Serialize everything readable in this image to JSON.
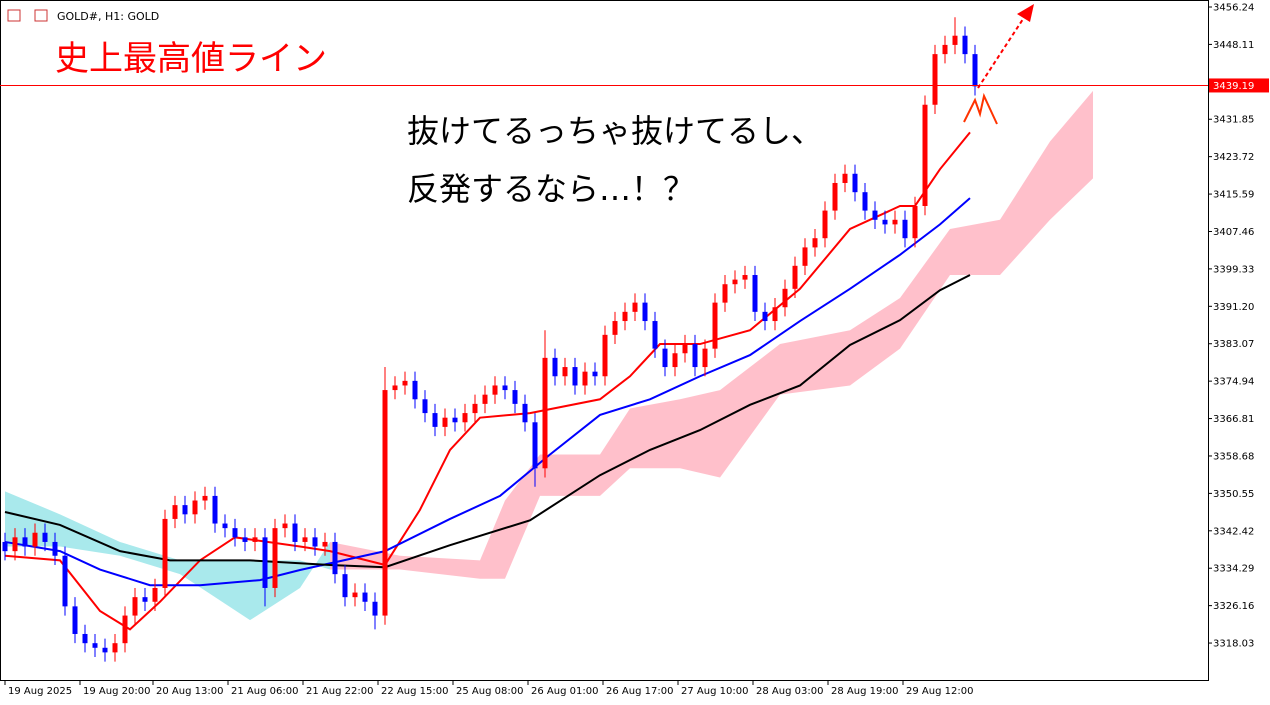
{
  "chart_data": {
    "type": "candlestick",
    "symbol_header": "GOLD#, H1: GOLD",
    "annotations": [
      "史上最高値ライン",
      "抜けてるっちゃ抜けてるし、",
      "反発するなら…！？"
    ],
    "price_line": 3439.19,
    "price_line_color": "#ff0000",
    "up_color": "#ff0000",
    "down_color": "#0000ff",
    "open": [
      3340,
      3338,
      3341,
      3339,
      3342,
      3340,
      3337,
      3326,
      3320,
      3318,
      3317,
      3316,
      3318,
      3324,
      3328,
      3327,
      3330,
      3345,
      3348,
      3346,
      3349,
      3350,
      3344,
      3343,
      3341,
      3340,
      3341,
      3330,
      3343,
      3344,
      3340,
      3341,
      3339,
      3340,
      3333,
      3328,
      3329,
      3327,
      3324,
      3373,
      3374,
      3375,
      3371,
      3368,
      3365,
      3367,
      3366,
      3368,
      3370,
      3372,
      3374,
      3373,
      3370,
      3366,
      3356,
      3380,
      3376,
      3378,
      3374,
      3377,
      3376,
      3385,
      3388,
      3390,
      3392,
      3388,
      3382,
      3378,
      3381,
      3383,
      3378,
      3382,
      3392,
      3396,
      3397,
      3398,
      3390,
      3388,
      3391,
      3395,
      3400,
      3404,
      3406,
      3412,
      3418,
      3420,
      3416,
      3412,
      3410,
      3409,
      3410,
      3406,
      3413,
      3435,
      3446,
      3448,
      3450,
      3446
    ],
    "high": [
      3342,
      3343,
      3343,
      3344,
      3344,
      3342,
      3339,
      3328,
      3322,
      3320,
      3319,
      3320,
      3326,
      3330,
      3330,
      3332,
      3347,
      3350,
      3350,
      3351,
      3352,
      3352,
      3346,
      3345,
      3343,
      3343,
      3343,
      3345,
      3346,
      3346,
      3343,
      3343,
      3342,
      3342,
      3335,
      3331,
      3331,
      3329,
      3378,
      3376,
      3377,
      3377,
      3373,
      3370,
      3369,
      3369,
      3370,
      3372,
      3374,
      3376,
      3376,
      3375,
      3372,
      3368,
      3386,
      3382,
      3380,
      3380,
      3379,
      3379,
      3387,
      3390,
      3392,
      3394,
      3394,
      3390,
      3384,
      3383,
      3385,
      3385,
      3384,
      3394,
      3398,
      3399,
      3400,
      3400,
      3392,
      3393,
      3397,
      3402,
      3406,
      3408,
      3414,
      3420,
      3422,
      3422,
      3418,
      3414,
      3412,
      3412,
      3412,
      3415,
      3437,
      3448,
      3450,
      3454,
      3452,
      3448
    ],
    "low": [
      3336,
      3336,
      3337,
      3337,
      3338,
      3335,
      3324,
      3318,
      3316,
      3315,
      3314,
      3314,
      3316,
      3322,
      3325,
      3325,
      3328,
      3343,
      3344,
      3344,
      3347,
      3342,
      3341,
      3339,
      3338,
      3338,
      3326,
      3328,
      3341,
      3338,
      3338,
      3337,
      3337,
      3331,
      3326,
      3326,
      3325,
      3321,
      3322,
      3371,
      3372,
      3369,
      3366,
      3363,
      3363,
      3364,
      3364,
      3366,
      3368,
      3370,
      3371,
      3368,
      3364,
      3352,
      3354,
      3374,
      3374,
      3372,
      3372,
      3374,
      3374,
      3383,
      3386,
      3388,
      3386,
      3380,
      3376,
      3376,
      3379,
      3376,
      3376,
      3380,
      3390,
      3394,
      3395,
      3388,
      3386,
      3386,
      3389,
      3393,
      3398,
      3402,
      3404,
      3410,
      3416,
      3414,
      3410,
      3408,
      3407,
      3407,
      3404,
      3404,
      3411,
      3433,
      3444,
      3446,
      3444,
      3437
    ],
    "close": [
      3338,
      3341,
      3339,
      3342,
      3340,
      3337,
      3326,
      3320,
      3318,
      3317,
      3316,
      3318,
      3324,
      3328,
      3327,
      3330,
      3345,
      3348,
      3346,
      3349,
      3350,
      3344,
      3343,
      3341,
      3340,
      3341,
      3330,
      3343,
      3344,
      3340,
      3341,
      3339,
      3340,
      3333,
      3328,
      3329,
      3327,
      3324,
      3373,
      3374,
      3375,
      3371,
      3368,
      3365,
      3367,
      3366,
      3368,
      3370,
      3372,
      3374,
      3373,
      3370,
      3366,
      3356,
      3380,
      3376,
      3378,
      3374,
      3377,
      3376,
      3385,
      3388,
      3390,
      3392,
      3388,
      3382,
      3378,
      3381,
      3383,
      3378,
      3382,
      3392,
      3396,
      3397,
      3398,
      3390,
      3388,
      3391,
      3395,
      3400,
      3404,
      3406,
      3412,
      3418,
      3420,
      3416,
      3412,
      3410,
      3409,
      3410,
      3406,
      3413,
      3435,
      3446,
      3448,
      3450,
      3446,
      3439
    ],
    "xlim": [
      -0.5,
      120.3
    ],
    "xticks": [
      {
        "value": 0,
        "label": "19 Aug 2025"
      },
      {
        "value": 7.5,
        "label": "19 Aug 20:00"
      },
      {
        "value": 14.8,
        "label": "20 Aug 13:00"
      },
      {
        "value": 22.3,
        "label": "21 Aug 06:00"
      },
      {
        "value": 29.8,
        "label": "21 Aug 22:00"
      },
      {
        "value": 37.3,
        "label": "22 Aug 15:00"
      },
      {
        "value": 44.8,
        "label": "25 Aug 08:00"
      },
      {
        "value": 52.3,
        "label": "26 Aug 01:00"
      },
      {
        "value": 59.8,
        "label": "26 Aug 17:00"
      },
      {
        "value": 67.3,
        "label": "27 Aug 10:00"
      },
      {
        "value": 74.8,
        "label": "28 Aug 03:00"
      },
      {
        "value": 82.3,
        "label": "28 Aug 19:00"
      },
      {
        "value": 89.8,
        "label": "29 Aug 12:00"
      }
    ],
    "ylim": [
      3310,
      3457.76
    ],
    "yticks": [
      3456.24,
      3448.11,
      3431.85,
      3423.72,
      3415.59,
      3407.46,
      3399.33,
      {
        "value": 3391.2,
        "label": "3391.20"
      },
      3383.07,
      3374.94,
      3366.81,
      3358.68,
      3350.55,
      3342.42,
      3334.29,
      3326.16,
      3318.03
    ],
    "lines": [
      {
        "color": "#ff0000",
        "x": [
          0,
          5.5,
          9.5,
          12.5,
          15.5,
          19.5,
          23,
          29.5,
          32.5,
          38,
          41.5,
          44.5,
          47.5,
          52.5,
          59.5,
          62.5,
          65.5,
          69.5,
          74.5,
          79.5,
          84.5,
          89.5,
          91,
          93.5,
          96.5
        ],
        "values": [
          3337,
          3336,
          3325,
          3321,
          3327,
          3336,
          3341,
          3339,
          3338,
          3335,
          3347,
          3360,
          3367,
          3368,
          3371,
          3376,
          3383,
          3383,
          3386,
          3395,
          3408,
          3413,
          3413,
          3421,
          3429
        ]
      },
      {
        "color": "#0000ff",
        "x": [
          0,
          5.5,
          9.5,
          14.5,
          19.5,
          25.5,
          29.5,
          38,
          44.5,
          49.5,
          54.5,
          59.5,
          64.5,
          69.5,
          74.5,
          79.5,
          84.5,
          89.5,
          93.5,
          96.5
        ],
        "values": [
          3340,
          3338,
          3334,
          3330.6,
          3330.6,
          3331.7,
          3333.9,
          3338,
          3345,
          3350,
          3359,
          3367.6,
          3371,
          3376,
          3380.6,
          3388,
          3395,
          3402.4,
          3409,
          3414.7
        ]
      },
      {
        "color": "#000000",
        "x": [
          0,
          5.5,
          11.5,
          16.5,
          24.5,
          32.5,
          38,
          44.5,
          52.5,
          59.5,
          64.5,
          69.5,
          74.5,
          79.5,
          84.5,
          89.5,
          93.5,
          96.5
        ],
        "values": [
          3346.5,
          3343.7,
          3338,
          3336,
          3336,
          3335,
          3334.5,
          3339.3,
          3344.7,
          3354.5,
          3360,
          3364.3,
          3369.8,
          3374,
          3382.8,
          3388.2,
          3394.7,
          3398
        ]
      }
    ],
    "cloud": {
      "up_color": "#a9e9ec",
      "down_color": "#ffc0cb",
      "x": [
        0,
        5.5,
        11.5,
        17.5,
        24.5,
        29.5,
        32.5,
        39.5,
        47.5,
        50,
        53.5,
        59.5,
        62.5,
        67.5,
        71.5,
        77.5,
        84.5,
        89.5,
        94.5,
        99.5,
        104.5,
        108.8
      ],
      "span_a": [
        3351,
        3346,
        3340,
        3336,
        3336,
        3336,
        3334,
        3334,
        3332,
        3332,
        3350,
        3350,
        3356,
        3356,
        3354,
        3372,
        3374,
        3382,
        3398,
        3398,
        3410,
        3419
      ],
      "span_b": [
        3339,
        3339,
        3337,
        3333,
        3323,
        3330,
        3340,
        3337,
        3336,
        3349,
        3359,
        3359,
        3369,
        3371,
        3373,
        3383,
        3386,
        3393,
        3408,
        3410,
        3427,
        3438
      ]
    }
  }
}
